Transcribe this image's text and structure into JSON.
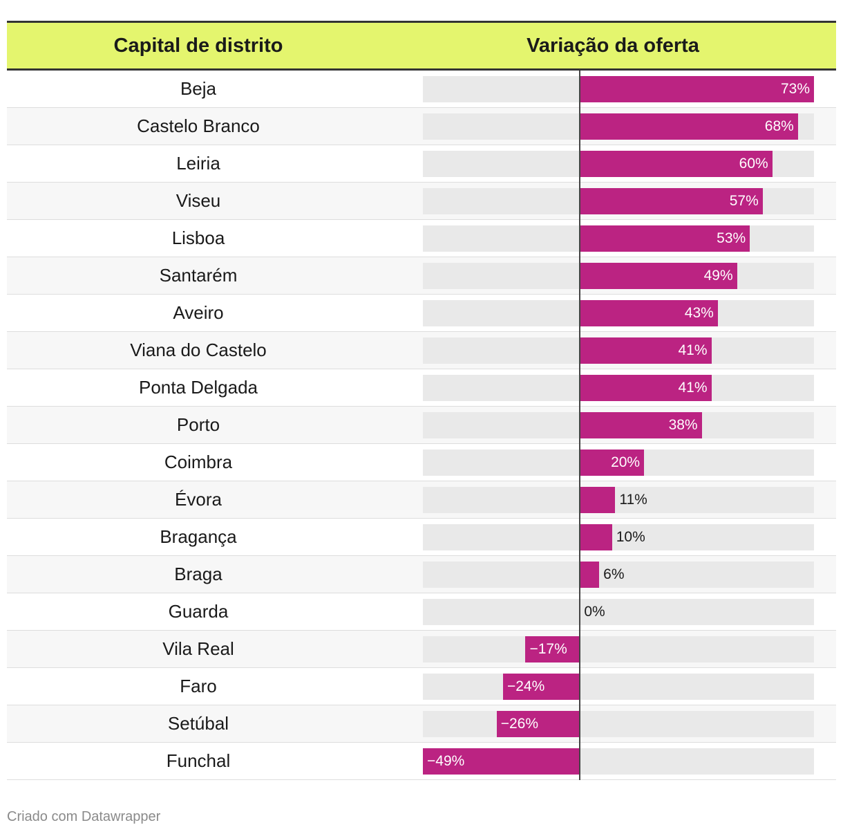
{
  "header": {
    "col1": "Capital de distrito",
    "col2": "Variação da oferta"
  },
  "colors": {
    "bar": "#bb2382",
    "header_bg": "#e4f56e",
    "track": "#e9e9e9"
  },
  "chart_data": {
    "type": "bar",
    "orientation": "horizontal",
    "domain": [
      -49,
      73
    ],
    "categories": [
      "Beja",
      "Castelo Branco",
      "Leiria",
      "Viseu",
      "Lisboa",
      "Santarém",
      "Aveiro",
      "Viana do Castelo",
      "Ponta Delgada",
      "Porto",
      "Coimbra",
      "Évora",
      "Bragança",
      "Braga",
      "Guarda",
      "Vila Real",
      "Faro",
      "Setúbal",
      "Funchal"
    ],
    "values": [
      73,
      68,
      60,
      57,
      53,
      49,
      43,
      41,
      41,
      38,
      20,
      11,
      10,
      6,
      0,
      -17,
      -24,
      -26,
      -49
    ],
    "labels": [
      "73%",
      "68%",
      "60%",
      "57%",
      "53%",
      "49%",
      "43%",
      "41%",
      "41%",
      "38%",
      "20%",
      "11%",
      "10%",
      "6%",
      "0%",
      "−17%",
      "−24%",
      "−26%",
      "−49%"
    ]
  },
  "footer": "Criado com Datawrapper"
}
